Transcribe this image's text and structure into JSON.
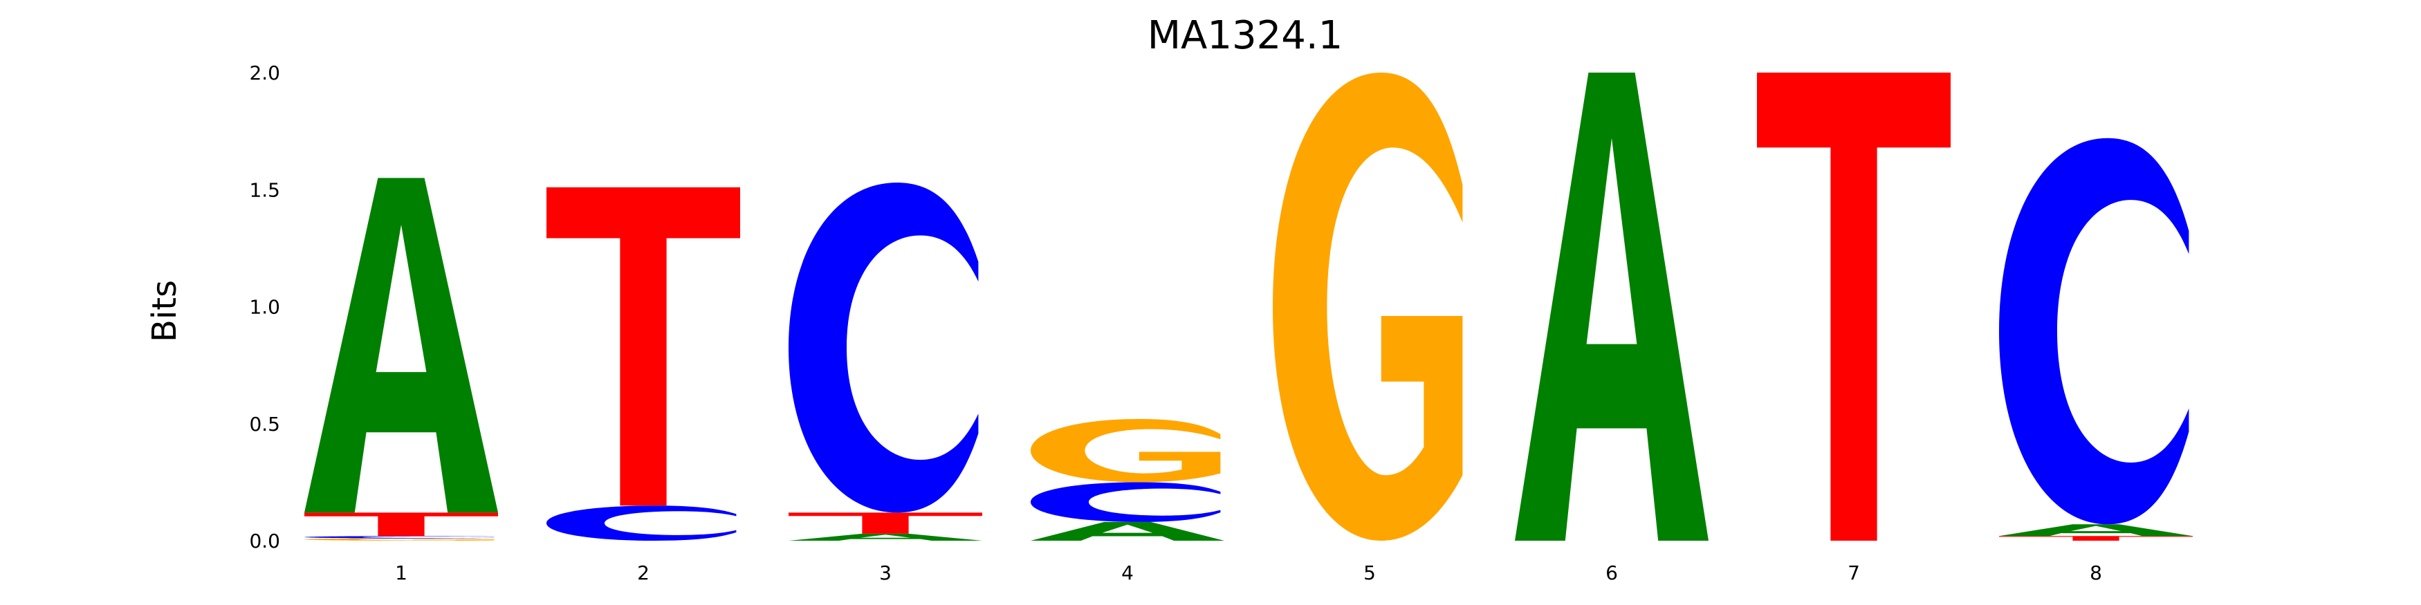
{
  "colors": {
    "A": "#008000",
    "C": "#0000ff",
    "G": "#ffa500",
    "T": "#ff0000"
  },
  "chart_data": {
    "type": "sequence-logo",
    "title": "MA1324.1",
    "xlabel": "",
    "ylabel": "Bits",
    "ylim": [
      0,
      2
    ],
    "yticks": [
      "0.0",
      "0.5",
      "1.0",
      "1.5",
      "2.0"
    ],
    "grid": false,
    "positions": [
      {
        "label": "1",
        "stack": [
          {
            "letter": "G",
            "bits": 0.01
          },
          {
            "letter": "C",
            "bits": 0.01
          },
          {
            "letter": "T",
            "bits": 0.1
          },
          {
            "letter": "A",
            "bits": 1.43
          }
        ]
      },
      {
        "label": "2",
        "stack": [
          {
            "letter": "C",
            "bits": 0.15
          },
          {
            "letter": "T",
            "bits": 1.36
          }
        ]
      },
      {
        "label": "3",
        "stack": [
          {
            "letter": "A",
            "bits": 0.03
          },
          {
            "letter": "T",
            "bits": 0.09
          },
          {
            "letter": "C",
            "bits": 1.41
          }
        ]
      },
      {
        "label": "4",
        "stack": [
          {
            "letter": "A",
            "bits": 0.08
          },
          {
            "letter": "C",
            "bits": 0.17
          },
          {
            "letter": "G",
            "bits": 0.27
          }
        ]
      },
      {
        "label": "5",
        "stack": [
          {
            "letter": "G",
            "bits": 2.0
          }
        ]
      },
      {
        "label": "6",
        "stack": [
          {
            "letter": "A",
            "bits": 2.0
          }
        ]
      },
      {
        "label": "7",
        "stack": [
          {
            "letter": "T",
            "bits": 2.0
          }
        ]
      },
      {
        "label": "8",
        "stack": [
          {
            "letter": "T",
            "bits": 0.02
          },
          {
            "letter": "A",
            "bits": 0.05
          },
          {
            "letter": "C",
            "bits": 1.65
          }
        ]
      }
    ]
  }
}
